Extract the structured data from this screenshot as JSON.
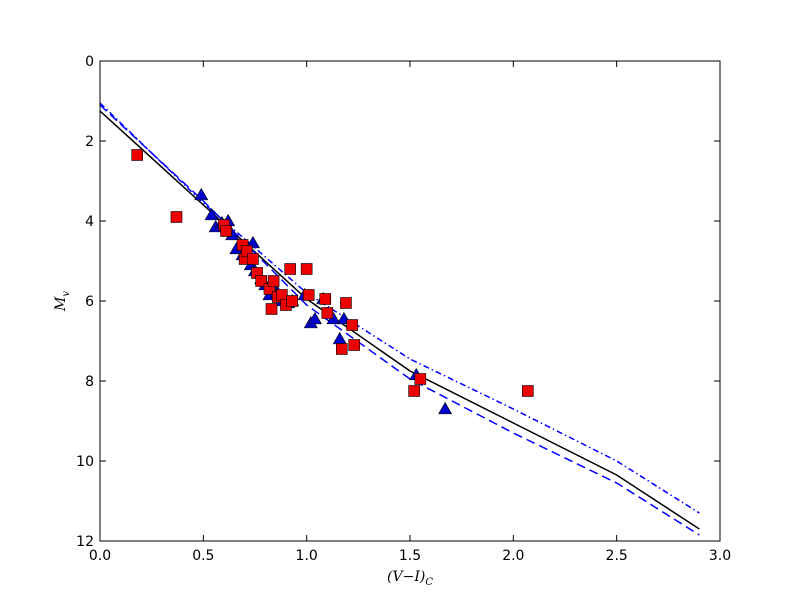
{
  "chart_data": {
    "type": "scatter",
    "title": "",
    "xlabel": "(V−I)",
    "xlabel_sub": "C",
    "ylabel": "M",
    "ylabel_sub": "v",
    "xlim": [
      0.0,
      3.0
    ],
    "ylim": [
      12,
      0
    ],
    "y_inverted": true,
    "xticks": [
      "0.0",
      "0.5",
      "1.0",
      "1.5",
      "2.0",
      "2.5",
      "3.0"
    ],
    "yticks": [
      "0",
      "2",
      "4",
      "6",
      "8",
      "10",
      "12"
    ],
    "grid": false,
    "legend": "none",
    "series": [
      {
        "kind": "scatter",
        "marker": "triangle",
        "color": "#0000cc",
        "points": [
          [
            0.49,
            3.35
          ],
          [
            0.54,
            3.85
          ],
          [
            0.56,
            4.15
          ],
          [
            0.59,
            4.05
          ],
          [
            0.62,
            4.0
          ],
          [
            0.64,
            4.35
          ],
          [
            0.66,
            4.7
          ],
          [
            0.69,
            4.85
          ],
          [
            0.71,
            4.9
          ],
          [
            0.74,
            4.55
          ],
          [
            0.73,
            5.1
          ],
          [
            0.75,
            5.25
          ],
          [
            0.78,
            5.45
          ],
          [
            0.8,
            5.6
          ],
          [
            0.82,
            5.85
          ],
          [
            0.84,
            5.7
          ],
          [
            0.86,
            5.8
          ],
          [
            0.88,
            6.0
          ],
          [
            0.91,
            6.05
          ],
          [
            0.93,
            6.0
          ],
          [
            0.99,
            5.85
          ],
          [
            1.02,
            6.55
          ],
          [
            1.04,
            6.45
          ],
          [
            1.08,
            5.95
          ],
          [
            1.13,
            6.45
          ],
          [
            1.16,
            6.95
          ],
          [
            1.18,
            6.45
          ],
          [
            1.53,
            7.85
          ],
          [
            1.67,
            8.7
          ]
        ]
      },
      {
        "kind": "scatter",
        "marker": "square",
        "color": "#ee0000",
        "points": [
          [
            0.18,
            2.35
          ],
          [
            0.37,
            3.9
          ],
          [
            0.6,
            4.1
          ],
          [
            0.61,
            4.25
          ],
          [
            0.69,
            4.6
          ],
          [
            0.7,
            4.95
          ],
          [
            0.71,
            4.75
          ],
          [
            0.74,
            4.95
          ],
          [
            0.76,
            5.3
          ],
          [
            0.78,
            5.5
          ],
          [
            0.82,
            5.7
          ],
          [
            0.83,
            6.2
          ],
          [
            0.84,
            5.5
          ],
          [
            0.86,
            5.9
          ],
          [
            0.88,
            5.85
          ],
          [
            0.9,
            6.1
          ],
          [
            0.92,
            5.2
          ],
          [
            0.93,
            6.0
          ],
          [
            1.0,
            5.2
          ],
          [
            1.01,
            5.85
          ],
          [
            1.09,
            5.95
          ],
          [
            1.1,
            6.3
          ],
          [
            1.17,
            7.2
          ],
          [
            1.19,
            6.05
          ],
          [
            1.22,
            6.6
          ],
          [
            1.23,
            7.1
          ],
          [
            1.52,
            8.25
          ],
          [
            1.55,
            7.95
          ],
          [
            2.07,
            8.25
          ]
        ]
      },
      {
        "kind": "line",
        "style": "solid",
        "color": "#000000",
        "points": [
          [
            0.0,
            1.25
          ],
          [
            0.5,
            3.6
          ],
          [
            1.0,
            5.95
          ],
          [
            1.5,
            7.75
          ],
          [
            2.0,
            9.05
          ],
          [
            2.5,
            10.35
          ],
          [
            2.9,
            11.7
          ]
        ]
      },
      {
        "kind": "line",
        "style": "dashed",
        "color": "#0000ff",
        "points": [
          [
            0.0,
            1.1
          ],
          [
            0.5,
            3.5
          ],
          [
            1.0,
            6.1
          ],
          [
            1.5,
            7.95
          ],
          [
            2.0,
            9.3
          ],
          [
            2.5,
            10.55
          ],
          [
            2.9,
            11.85
          ]
        ]
      },
      {
        "kind": "line",
        "style": "dashdot",
        "color": "#0000ff",
        "points": [
          [
            0.0,
            1.05
          ],
          [
            0.5,
            3.55
          ],
          [
            1.0,
            5.8
          ],
          [
            1.5,
            7.45
          ],
          [
            2.0,
            8.7
          ],
          [
            2.5,
            10.0
          ],
          [
            2.9,
            11.3
          ]
        ]
      }
    ]
  }
}
